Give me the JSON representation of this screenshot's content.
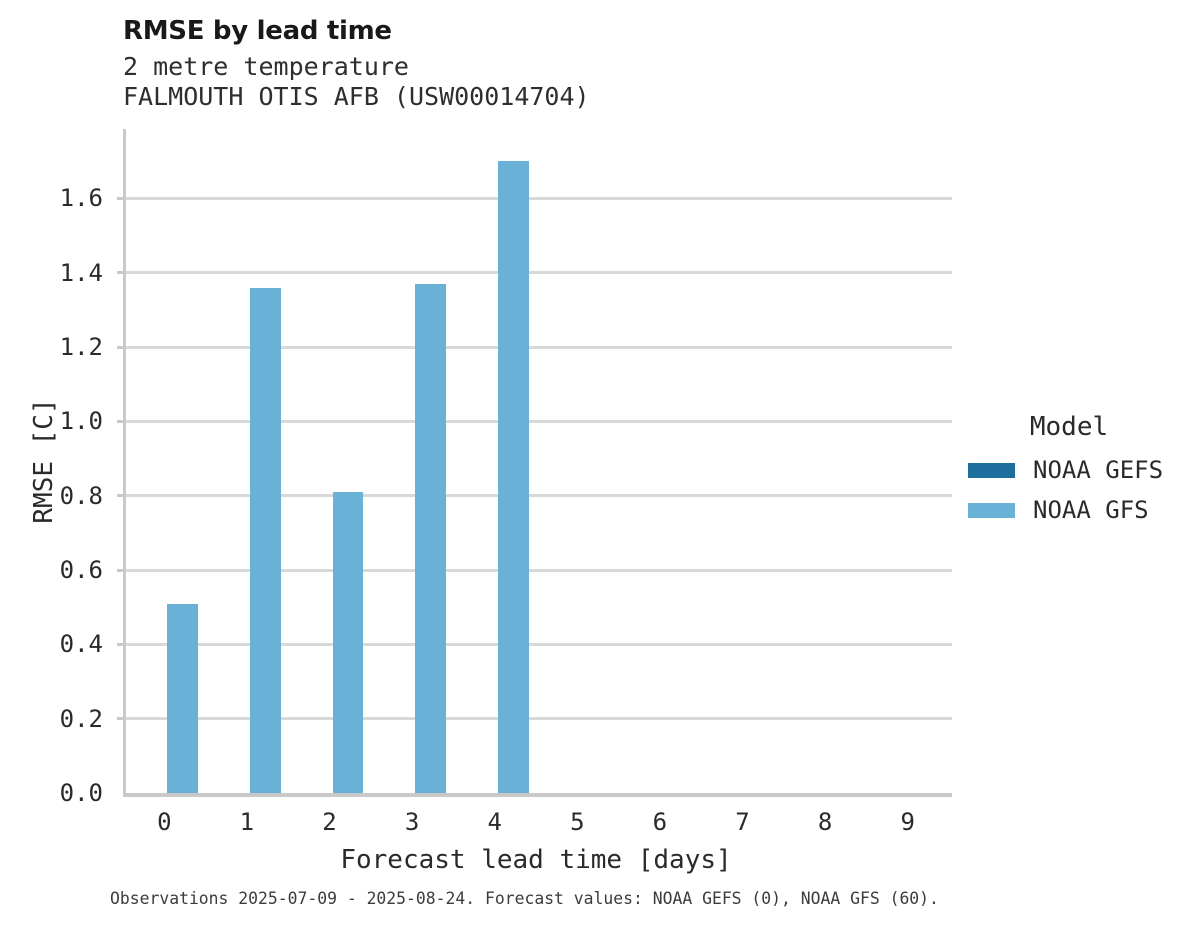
{
  "header": {
    "title": "RMSE by lead time",
    "subtitle_line1": "2 metre temperature",
    "subtitle_line2": "FALMOUTH OTIS AFB (USW00014704)"
  },
  "legend": {
    "title": "Model",
    "items": [
      {
        "label": "NOAA GEFS",
        "color": "#1f6f9e"
      },
      {
        "label": "NOAA GFS",
        "color": "#6ab1d8"
      }
    ]
  },
  "footer": "Observations 2025-07-09 - 2025-08-24. Forecast values: NOAA GEFS (0), NOAA GFS (60).",
  "chart_data": {
    "type": "bar",
    "title": "RMSE by lead time",
    "subtitle": "2 metre temperature",
    "station": "FALMOUTH OTIS AFB (USW00014704)",
    "xlabel": "Forecast lead time [days]",
    "ylabel": "RMSE [C]",
    "categories": [
      0,
      1,
      2,
      3,
      4,
      5,
      6,
      7,
      8,
      9
    ],
    "series": [
      {
        "name": "NOAA GEFS",
        "color": "#1f6f9e",
        "values": [
          null,
          null,
          null,
          null,
          null,
          null,
          null,
          null,
          null,
          null
        ]
      },
      {
        "name": "NOAA GFS",
        "color": "#6ab1d8",
        "values": [
          0.51,
          1.36,
          0.81,
          1.37,
          1.7,
          null,
          null,
          null,
          null,
          null
        ]
      }
    ],
    "ylim": [
      0,
      1.787
    ],
    "yticks": [
      0.0,
      0.2,
      0.4,
      0.6,
      0.8,
      1.0,
      1.2,
      1.4,
      1.6
    ],
    "grid": true,
    "legend_position": "right",
    "colors": {
      "grid": "#d8d8d8",
      "spine": "#c9c9c9"
    }
  }
}
